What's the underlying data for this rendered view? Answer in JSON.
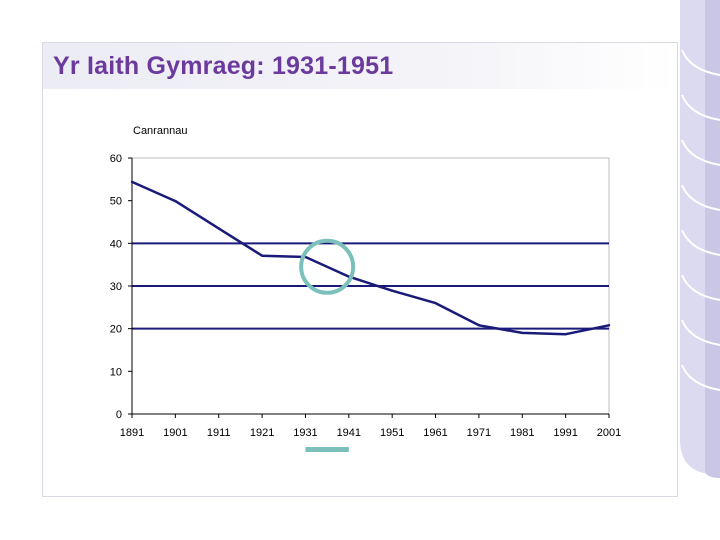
{
  "slide": {
    "title": "Yr Iaith Gymraeg: 1931-1951"
  },
  "colors": {
    "title": "#6b3a9c",
    "line": "#1a1a7a",
    "highlight": "#7cc0bb",
    "decoration": "#d8d6ec"
  },
  "chart_data": {
    "type": "line",
    "ylabel": "Canrannau",
    "xlabel": "",
    "ylim": [
      0,
      60
    ],
    "yticks": [
      "0",
      "10",
      "20",
      "30",
      "40",
      "50",
      "60"
    ],
    "grid": "horizontal major at 20, 30 and 40",
    "categories": [
      "1891",
      "1901",
      "1911",
      "1921",
      "1931",
      "1941",
      "1951",
      "1961",
      "1971",
      "1981",
      "1991",
      "2001"
    ],
    "series": [
      {
        "x": [
          1891,
          1901,
          1911,
          1921,
          1931,
          1941,
          1951,
          1961,
          1971,
          1981,
          1991,
          2001
        ],
        "values": [
          54.4,
          49.9,
          43.5,
          37.1,
          36.8,
          32.2,
          28.9,
          26.0,
          20.8,
          19.0,
          18.7,
          20.8
        ]
      }
    ],
    "annotations": [
      "circle highlighting the 1931-1941 segment",
      "bar marker under 1931-1941"
    ]
  }
}
